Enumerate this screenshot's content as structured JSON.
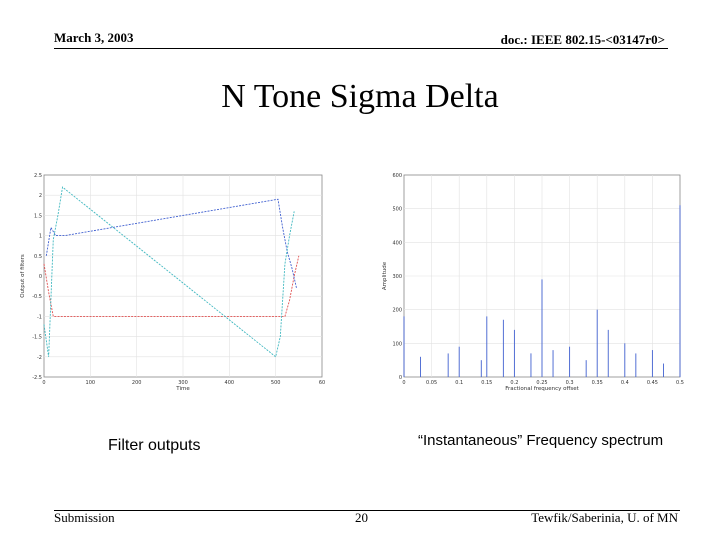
{
  "header": {
    "date": "March 3, 2003",
    "doc_id": "doc.: IEEE 802.15-<03147r0>"
  },
  "slide": {
    "title": "N Tone Sigma Delta"
  },
  "figures": {
    "left_caption": "Filter outputs",
    "right_caption": "“Instantaneous” Frequency spectrum"
  },
  "chart_data": [
    {
      "type": "line",
      "xlabel": "Time",
      "ylabel": "Output of filters",
      "xlim": [
        0,
        600
      ],
      "ylim": [
        -2.5,
        2.5
      ],
      "x_ticks": [
        "0",
        "100",
        "200",
        "300",
        "400",
        "500",
        "60"
      ],
      "y_ticks": [
        "2.5",
        "2",
        "1.5",
        "1",
        "0.5",
        "0",
        "-0.5",
        "-1",
        "-1.5",
        "-2",
        "-2.5"
      ],
      "grid": true,
      "series": [
        {
          "color": "#e05050",
          "x": [
            0,
            10,
            20,
            30,
            40,
            510,
            520,
            530,
            540,
            550
          ],
          "y": [
            0.3,
            -0.4,
            -1.0,
            -1.0,
            -1.0,
            -1.0,
            -1.0,
            -0.6,
            0.0,
            0.5
          ]
        },
        {
          "color": "#4060d0",
          "x": [
            5,
            15,
            25,
            35,
            45,
            505,
            515,
            525,
            535,
            545
          ],
          "y": [
            0.5,
            1.2,
            1.0,
            1.0,
            1.0,
            1.9,
            1.2,
            0.6,
            0.2,
            -0.3
          ]
        },
        {
          "color": "#40b8c0",
          "x": [
            0,
            10,
            20,
            30,
            40,
            500,
            510,
            520,
            530,
            540
          ],
          "y": [
            -1.2,
            -2.0,
            0.9,
            1.5,
            2.2,
            -2.0,
            -1.5,
            0.3,
            1.0,
            1.6
          ]
        }
      ]
    },
    {
      "type": "line",
      "xlabel": "Fractional frequency offset",
      "ylabel": "Amplitude",
      "xlim": [
        0,
        0.5
      ],
      "ylim": [
        0,
        600
      ],
      "x_ticks": [
        "0",
        "0.05",
        "0.1",
        "0.15",
        "0.2",
        "0.25",
        "0.3",
        "0.35",
        "0.4",
        "0.45",
        "0.5"
      ],
      "y_ticks": [
        "0",
        "100",
        "200",
        "300",
        "400",
        "500",
        "600"
      ],
      "grid": true,
      "series": [
        {
          "color": "#4060d0",
          "x": [
            0.0,
            0.03,
            0.08,
            0.1,
            0.14,
            0.15,
            0.18,
            0.2,
            0.23,
            0.25,
            0.27,
            0.3,
            0.33,
            0.35,
            0.37,
            0.4,
            0.42,
            0.45,
            0.47,
            0.5
          ],
          "y": [
            180,
            60,
            70,
            90,
            50,
            180,
            170,
            140,
            70,
            290,
            80,
            90,
            50,
            200,
            140,
            100,
            70,
            80,
            40,
            510
          ]
        }
      ]
    }
  ],
  "footer": {
    "left": "Submission",
    "page": "20",
    "right": "Tewfik/Saberinia, U. of MN"
  }
}
